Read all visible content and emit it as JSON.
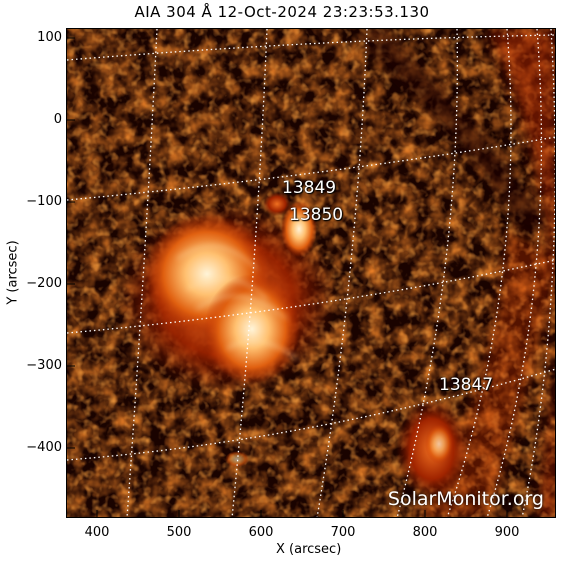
{
  "title": "AIA 304 Å 12-Oct-2024 23:23:53.130",
  "x_axis": {
    "label": "X (arcsec)",
    "ticks": [
      "400",
      "500",
      "600",
      "700",
      "800",
      "900"
    ]
  },
  "y_axis": {
    "label": "Y (arcsec)",
    "ticks": [
      "100",
      "0",
      "−100",
      "−200",
      "−300",
      "−400"
    ]
  },
  "regions": [
    {
      "id": "13849",
      "label": "13849"
    },
    {
      "id": "13850",
      "label": "13850"
    },
    {
      "id": "13847",
      "label": "13847"
    }
  ],
  "watermark": "SolarMonitor.org",
  "colors": {
    "disk_dark": "#1a0300",
    "plasma": "#c03000",
    "bright": "#ffd080",
    "grid": "#ffffff"
  }
}
